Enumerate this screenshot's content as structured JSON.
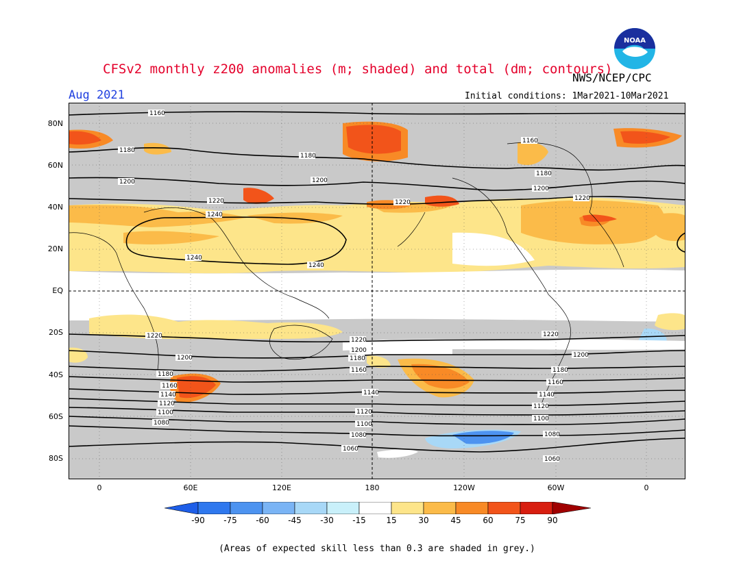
{
  "title": "CFSv2 monthly z200 anomalies (m; shaded) and total (dm; contours)",
  "agency": "NWS/NCEP/CPC",
  "logo_text": "NOAA",
  "period": "Aug 2021",
  "initial_conditions": "Initial conditions: 1Mar2021-10Mar2021",
  "lat_labels": [
    "80N",
    "60N",
    "40N",
    "20N",
    "EQ",
    "20S",
    "40S",
    "60S",
    "80S"
  ],
  "lon_labels": [
    "0",
    "60E",
    "120E",
    "180",
    "120W",
    "60W",
    "0"
  ],
  "colorbar": {
    "labels": [
      "-90",
      "-75",
      "-60",
      "-45",
      "-30",
      "-15",
      "15",
      "30",
      "45",
      "60",
      "75",
      "90"
    ],
    "colors": [
      "#1e5ee8",
      "#2f78ee",
      "#4d93f0",
      "#7ab4f5",
      "#a8d8f7",
      "#ffffff",
      "#fde58a",
      "#fbbb49",
      "#f88a26",
      "#f2541a",
      "#d81e10",
      "#a00000"
    ]
  },
  "contour_labels": [
    "1160",
    "1180",
    "1200",
    "1220",
    "1240",
    "1060",
    "1080",
    "1100",
    "1120",
    "1140"
  ],
  "note": "(Areas of expected skill less than 0.3 are shaded in grey.)",
  "colors": {
    "grey_mask": "#c9c9c9",
    "title_red": "#e4002b",
    "period_blue": "#1f3fdf"
  }
}
